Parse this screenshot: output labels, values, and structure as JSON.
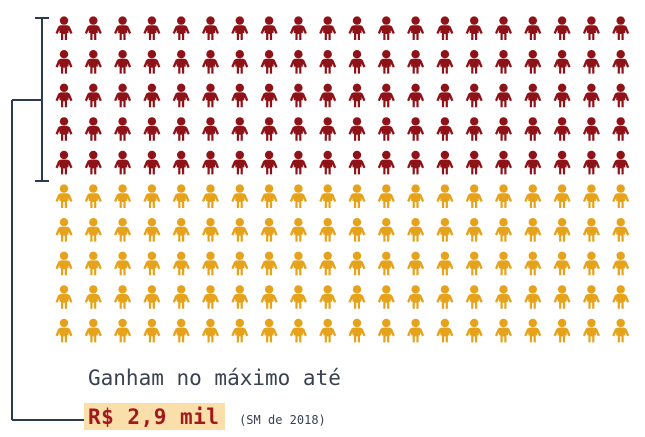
{
  "figure": {
    "rows": 10,
    "columns": 20,
    "highlighted_rows": 5,
    "colors": {
      "highlighted": "#8e1218",
      "rest": "#e6a21a",
      "bracket": "#2c3a52"
    },
    "icon": "person-icon"
  },
  "caption": {
    "line1": "Ganham no máximo até",
    "amount": "R$ 2,9 mil",
    "note": "(SM de 2018)"
  }
}
